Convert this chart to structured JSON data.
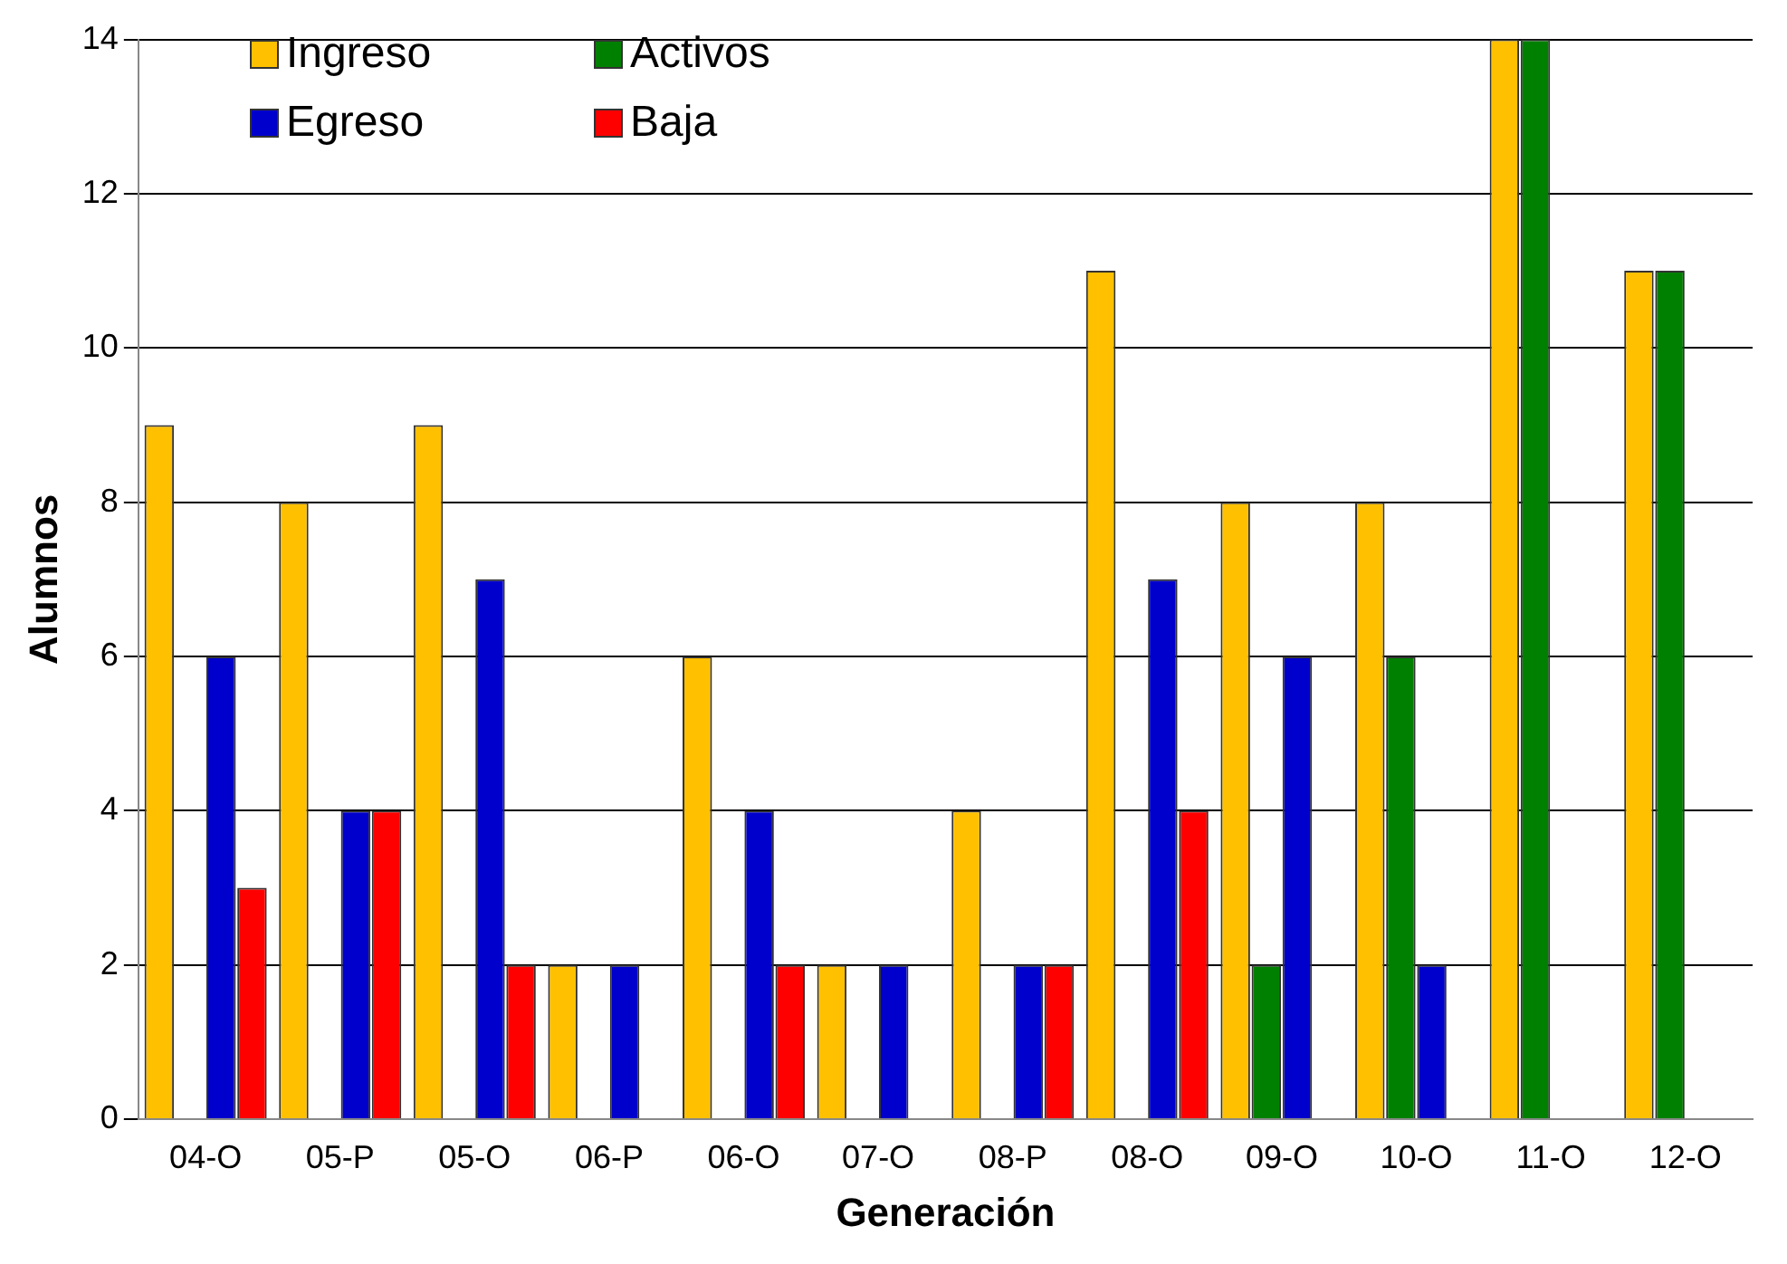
{
  "chart_data": {
    "type": "bar",
    "xlabel": "Generación",
    "ylabel": "Alumnos",
    "categories": [
      "04-O",
      "05-P",
      "05-O",
      "06-P",
      "06-O",
      "07-O",
      "08-P",
      "08-O",
      "09-O",
      "10-O",
      "11-O",
      "12-O"
    ],
    "series": [
      {
        "name": "Ingreso",
        "color": "#ffc000",
        "values": [
          9,
          8,
          9,
          2,
          6,
          2,
          4,
          11,
          8,
          8,
          14,
          11
        ]
      },
      {
        "name": "Activos",
        "color": "#008000",
        "values": [
          0,
          0,
          0,
          0,
          0,
          0,
          0,
          0,
          2,
          6,
          14,
          11
        ]
      },
      {
        "name": "Egreso",
        "color": "#0000cc",
        "values": [
          6,
          4,
          7,
          2,
          4,
          2,
          2,
          7,
          6,
          2,
          0,
          0
        ]
      },
      {
        "name": "Baja",
        "color": "#ff0000",
        "values": [
          3,
          4,
          2,
          0,
          2,
          0,
          2,
          4,
          0,
          0,
          0,
          0
        ]
      }
    ],
    "ylim": [
      0,
      14
    ],
    "yticks": [
      0,
      2,
      4,
      6,
      8,
      10,
      12,
      14
    ],
    "grid": "y",
    "legend": "top left"
  }
}
